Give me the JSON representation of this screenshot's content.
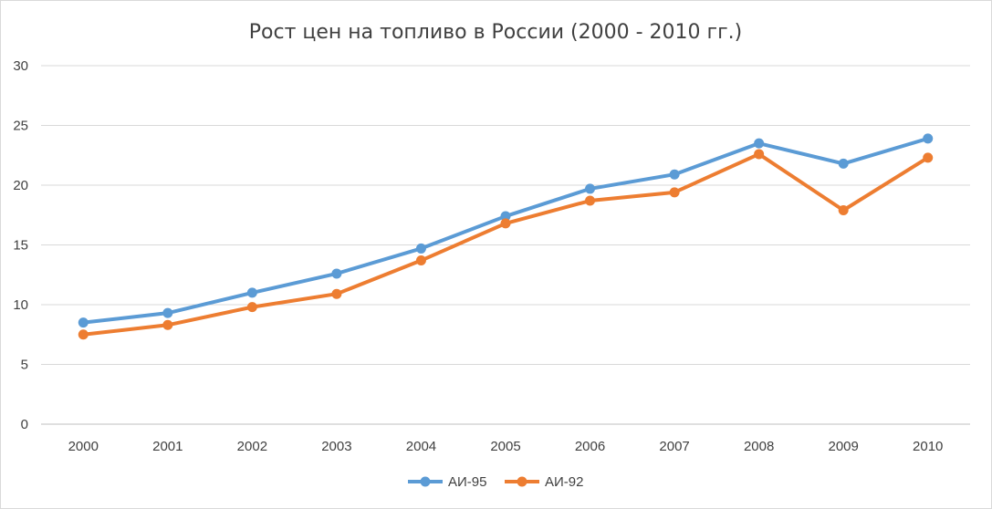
{
  "chart_data": {
    "type": "line",
    "title": "Рост цен на топливо в России (2000 - 2010 гг.)",
    "xlabel": "",
    "ylabel": "",
    "categories": [
      "2000",
      "2001",
      "2002",
      "2003",
      "2004",
      "2005",
      "2006",
      "2007",
      "2008",
      "2009",
      "2010"
    ],
    "ylim": [
      0,
      30
    ],
    "yticks": [
      0,
      5,
      10,
      15,
      20,
      25,
      30
    ],
    "grid": true,
    "legend_position": "bottom",
    "series": [
      {
        "name": "АИ-95",
        "color": "#5b9bd5",
        "values": [
          8.5,
          9.3,
          11.0,
          12.6,
          14.7,
          17.4,
          19.7,
          20.9,
          23.5,
          21.8,
          23.9
        ]
      },
      {
        "name": "АИ-92",
        "color": "#ed7d31",
        "values": [
          7.5,
          8.3,
          9.8,
          10.9,
          13.7,
          16.8,
          18.7,
          19.4,
          22.6,
          17.9,
          22.3
        ]
      }
    ]
  }
}
